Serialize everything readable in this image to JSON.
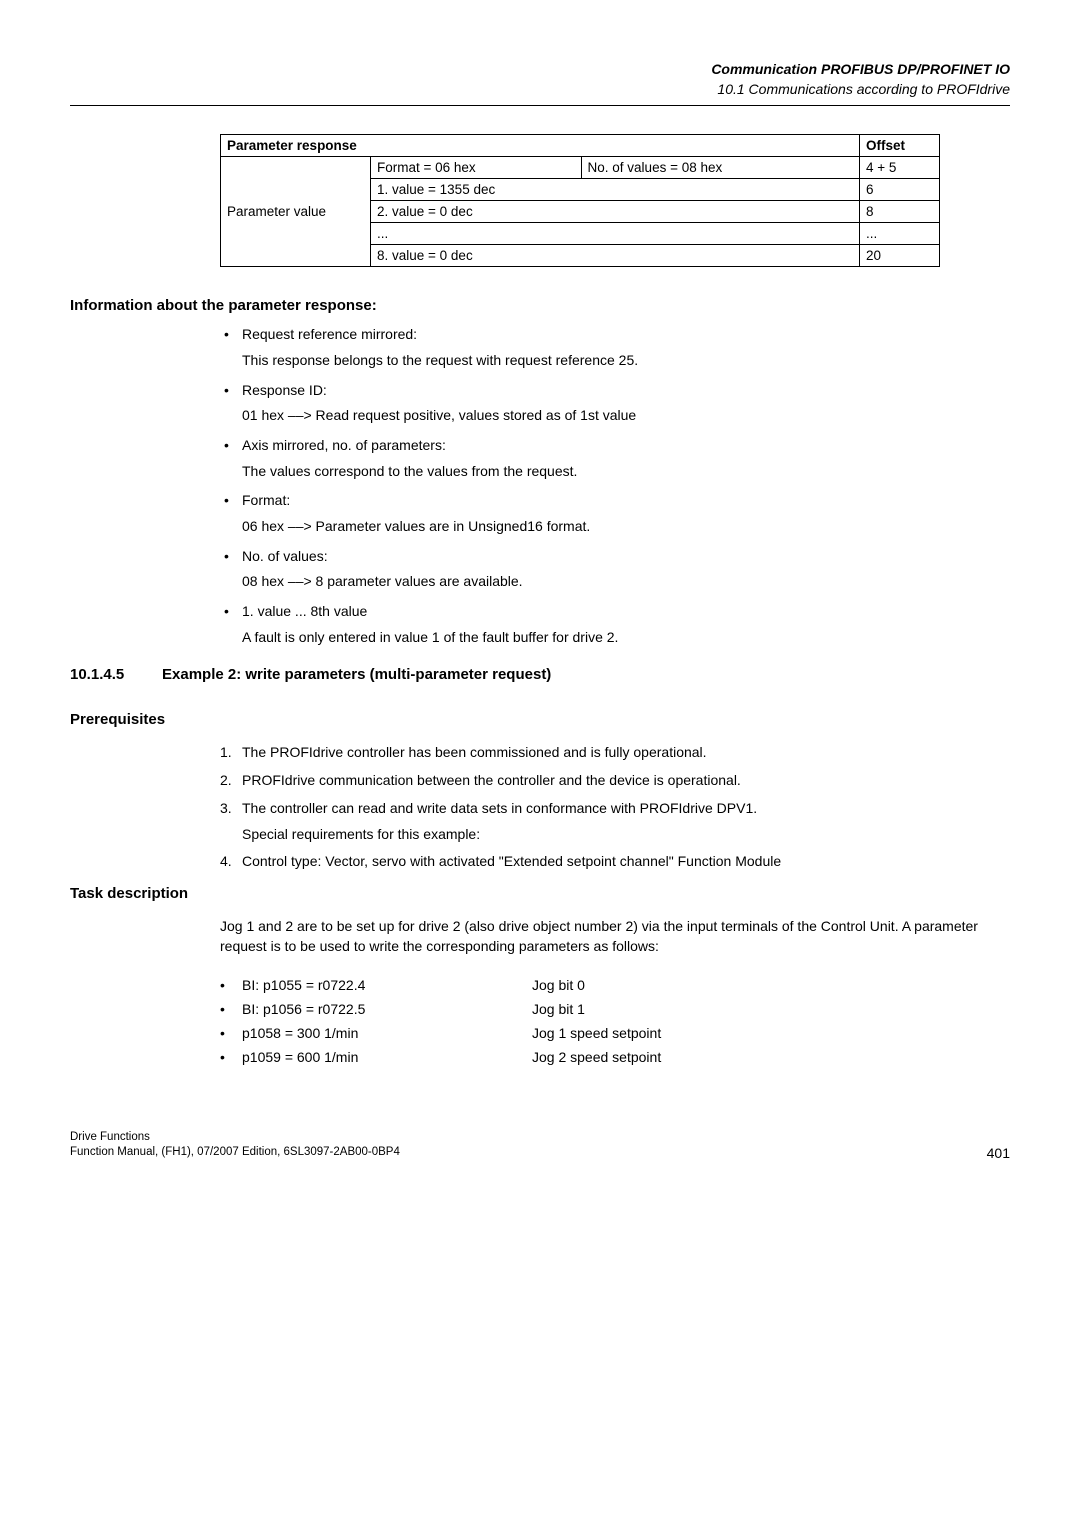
{
  "header": {
    "title": "Communication PROFIBUS DP/PROFINET IO",
    "subtitle": "10.1 Communications according to PROFIdrive"
  },
  "table": {
    "headers": {
      "left": "Parameter response",
      "right": "Offset"
    },
    "row_label": "Parameter value",
    "cells": {
      "format": "Format = 06 hex",
      "novalues": "No. of values = 08 hex",
      "offset1": "4 + 5",
      "val1": "1. value = 1355 dec",
      "off_val1": "6",
      "val2": "2. value = 0 dec",
      "off_val2": "8",
      "val3": "...",
      "off_val3": "...",
      "val4": "8. value = 0 dec",
      "off_val4": "20"
    }
  },
  "info": {
    "heading": "Information about the parameter response:",
    "items": [
      {
        "t": "Request reference mirrored:",
        "s": "This response belongs to the request with request reference 25."
      },
      {
        "t": "Response ID:",
        "s": "01 hex ––> Read request positive, values stored as of 1st value"
      },
      {
        "t": "Axis mirrored, no. of parameters:",
        "s": "The values correspond to the values from the request."
      },
      {
        "t": "Format:",
        "s": "06 hex ––> Parameter values are in Unsigned16 format."
      },
      {
        "t": "No. of values:",
        "s": "08 hex ––> 8 parameter values are available."
      },
      {
        "t": "1. value ... 8th value",
        "s": "A fault is only entered in value 1 of the fault buffer for drive 2."
      }
    ]
  },
  "example": {
    "number": "10.1.4.5",
    "title": "Example 2: write parameters (multi-parameter request)"
  },
  "prereq": {
    "heading": "Prerequisites",
    "items": [
      {
        "n": "1.",
        "t": "The PROFIdrive controller has been commissioned and is fully operational."
      },
      {
        "n": "2.",
        "t": "PROFIdrive communication between the controller and the device is operational."
      },
      {
        "n": "3.",
        "t": "The controller can read and write data sets in conformance with PROFIdrive DPV1.",
        "s": "Special requirements for this example:"
      },
      {
        "n": "4.",
        "t": "Control type: Vector, servo with activated \"Extended setpoint channel\" Function Module"
      }
    ]
  },
  "task": {
    "heading": "Task description",
    "text": "Jog 1 and 2 are to be set up for drive 2 (also drive object number 2) via the input terminals of the Control Unit. A parameter request is to be used to write the corresponding parameters as follows:",
    "rows": [
      {
        "l": "BI: p1055 = r0722.4",
        "r": "Jog bit 0"
      },
      {
        "l": "BI: p1056 = r0722.5",
        "r": "Jog bit 1"
      },
      {
        "l": "p1058 = 300 1/min",
        "r": "Jog 1 speed setpoint"
      },
      {
        "l": "p1059 = 600 1/min",
        "r": "Jog 2 speed setpoint"
      }
    ]
  },
  "footer": {
    "line1": "Drive Functions",
    "line2": "Function Manual, (FH1), 07/2007 Edition, 6SL3097-2AB00-0BP4",
    "page": "401"
  }
}
